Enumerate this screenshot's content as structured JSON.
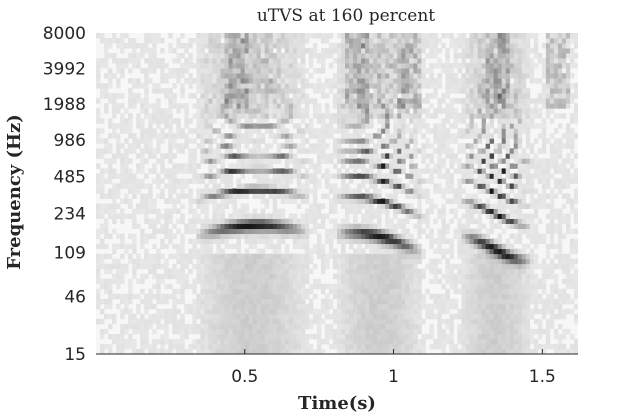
{
  "chart_data": {
    "type": "heatmap",
    "title": "uTVS at 160 percent",
    "xlabel": "Time(s)",
    "ylabel": "Frequency (Hz)",
    "xlim": [
      0.0,
      1.62
    ],
    "ylim_log2": [
      15,
      8000
    ],
    "x_scale": "linear",
    "y_scale": "log",
    "colormap": "grayscale-inverted",
    "grid": false,
    "x_ticks": [
      0.5,
      1,
      1.5
    ],
    "x_tick_labels": [
      "0.5",
      "1",
      "1.5"
    ],
    "y_ticks": [
      15,
      46,
      109,
      234,
      485,
      986,
      1988,
      3992,
      8000
    ],
    "y_tick_labels": [
      "15",
      "46",
      "109",
      "234",
      "485",
      "986",
      "1988",
      "3992",
      "8000"
    ],
    "segments": [
      {
        "start": 0.33,
        "end": 0.74,
        "f0": 150
      },
      {
        "start": 0.8,
        "end": 1.12,
        "f0": 130
      },
      {
        "start": 1.22,
        "end": 1.48,
        "f0": 125
      }
    ]
  }
}
